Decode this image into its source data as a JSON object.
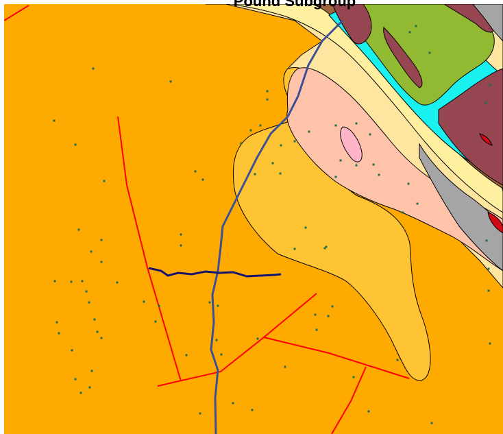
{
  "map": {
    "title": "Pound Subgroup",
    "colors": {
      "background_unit": "#FFAA00",
      "light_orange_unit": "#FFC433",
      "salmon_unit": "#FFC3AA",
      "pink_unit": "#FFB4C8",
      "pale_yellow_unit": "#FFF0A0",
      "cream_unit": "#FFE6A0",
      "cyan_unit": "#19F0F0",
      "olive_unit": "#91B932",
      "maroon_unit": "#964650",
      "brown_unit": "#A0643C",
      "grey_unit": "#A5A5A5",
      "red_unit": "#D20A14",
      "fault_lines": "#FF0000",
      "stream": "#3C5096",
      "cross_section_line": "#14146E",
      "sample_points": "#1E6E50",
      "contacts": "#000000"
    },
    "layers": [
      "geologic-units",
      "faults",
      "stream",
      "cross-section-line",
      "sample-points"
    ]
  }
}
